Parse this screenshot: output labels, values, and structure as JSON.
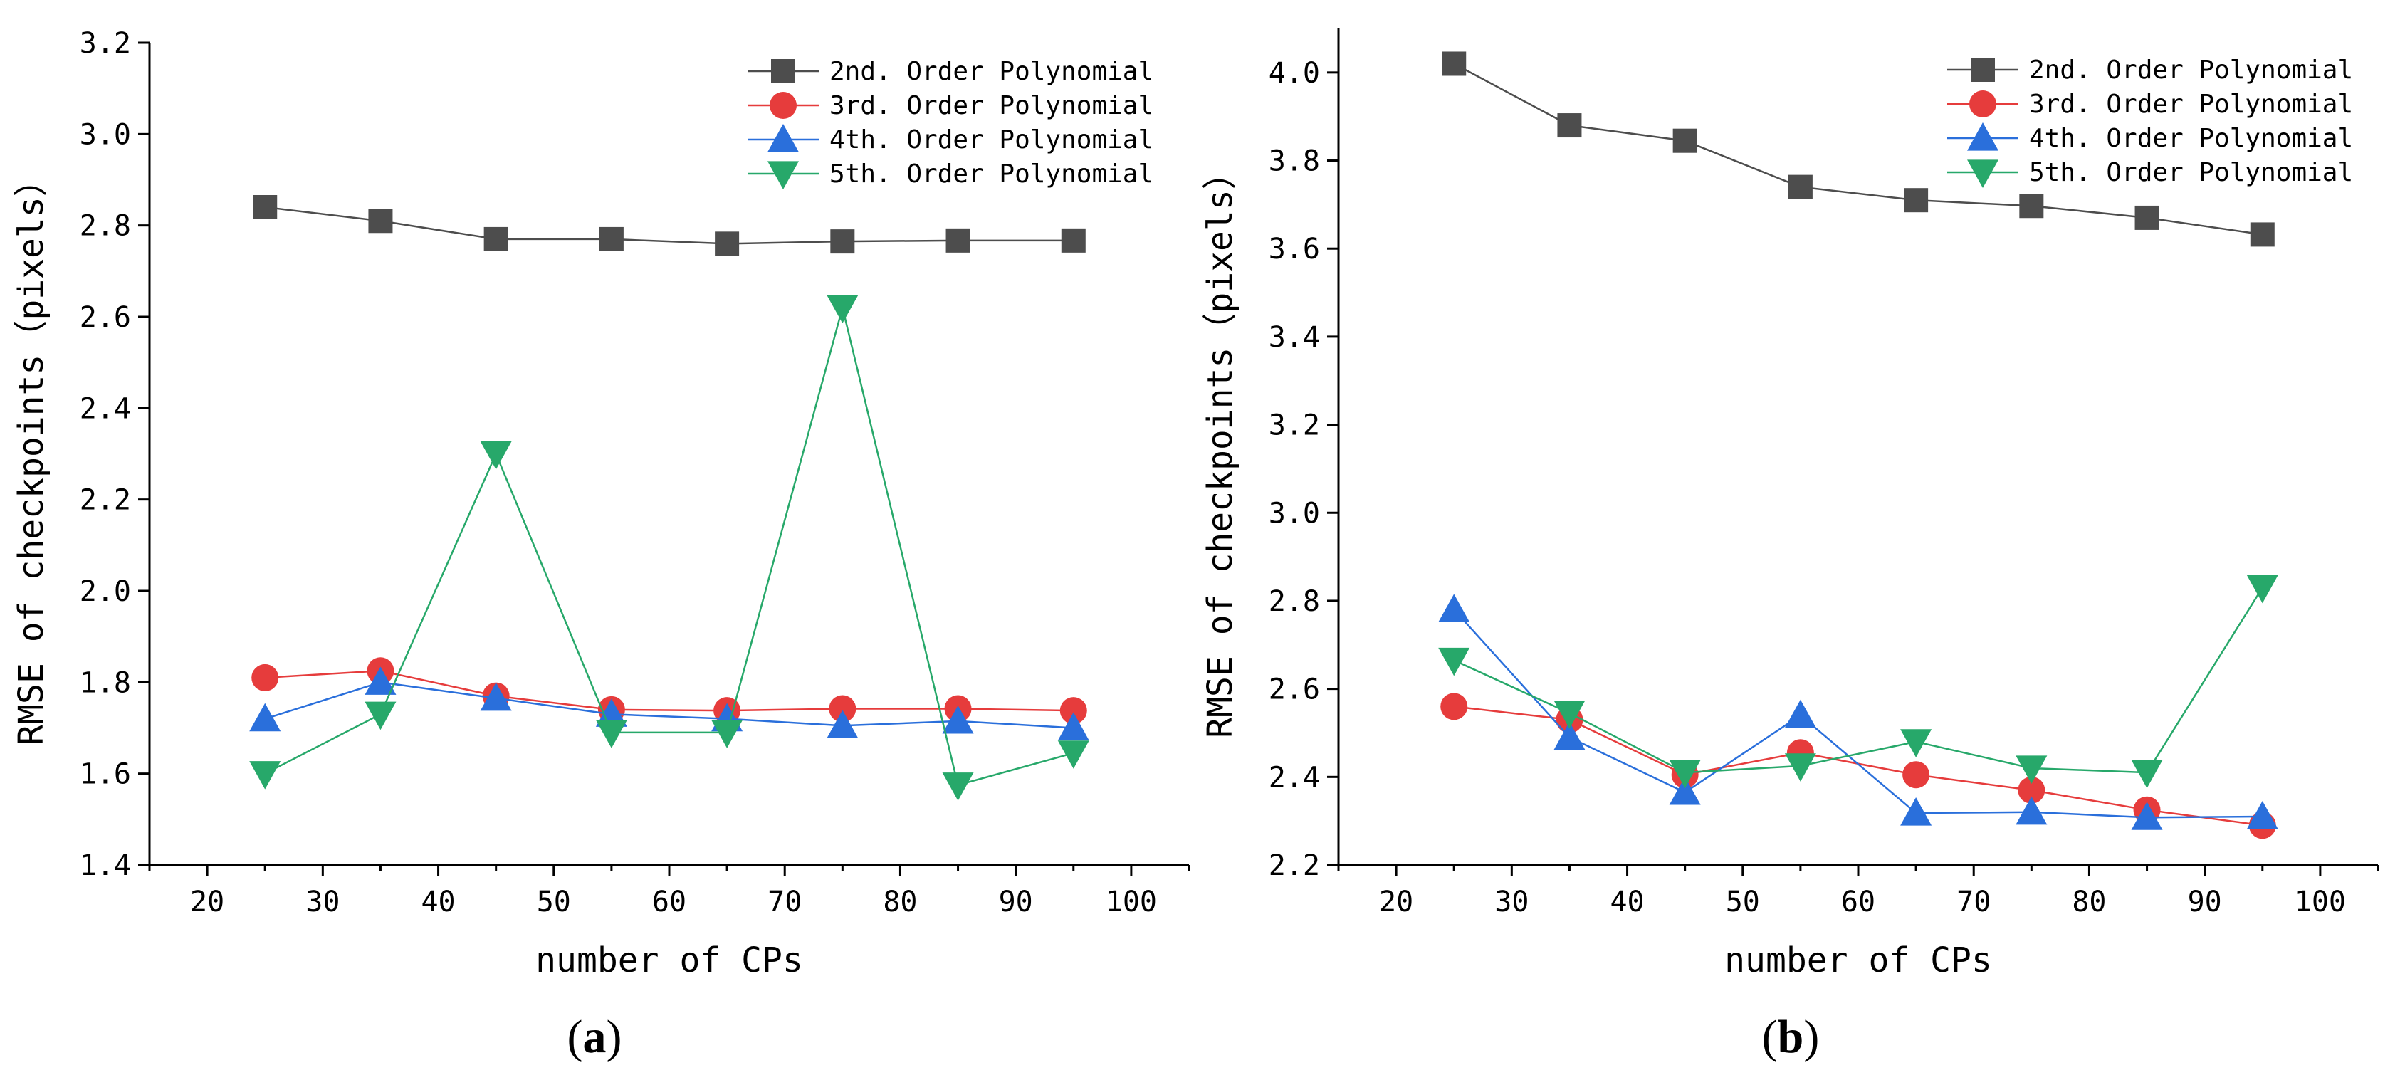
{
  "chart_data": [
    {
      "type": "line",
      "panel_label": "a",
      "title": "",
      "xlabel": "number of CPs",
      "ylabel": "RMSE of checkpoints（pixels）",
      "xlim": [
        15,
        105
      ],
      "ylim": [
        1.4,
        3.2
      ],
      "xticks": [
        20,
        30,
        40,
        50,
        60,
        70,
        80,
        90,
        100
      ],
      "yticks": [
        "1.4",
        "1.6",
        "1.8",
        "2.0",
        "2.2",
        "2.4",
        "2.6",
        "2.8",
        "3.0",
        "3.2"
      ],
      "x": [
        25,
        35,
        45,
        55,
        65,
        75,
        85,
        95
      ],
      "legend_position": "top-right",
      "grid": false,
      "series": [
        {
          "name": "2nd. Order Polynomial",
          "marker": "square",
          "color": "#4d4d4d",
          "values": [
            2.84,
            2.81,
            2.77,
            2.77,
            2.76,
            2.765,
            2.767,
            2.767
          ]
        },
        {
          "name": "3rd. Order Polynomial",
          "marker": "circle",
          "color": "#e63c3c",
          "values": [
            1.81,
            1.825,
            1.77,
            1.74,
            1.738,
            1.742,
            1.742,
            1.738
          ]
        },
        {
          "name": "4th. Order Polynomial",
          "marker": "triangle-up",
          "color": "#2a6fdb",
          "values": [
            1.72,
            1.8,
            1.765,
            1.73,
            1.72,
            1.705,
            1.715,
            1.7
          ]
        },
        {
          "name": "5th. Order Polynomial",
          "marker": "triangle-down",
          "color": "#27a86a",
          "values": [
            1.6,
            1.73,
            2.3,
            1.69,
            1.69,
            2.62,
            1.575,
            1.645
          ]
        }
      ]
    },
    {
      "type": "line",
      "panel_label": "b",
      "title": "",
      "xlabel": "number of CPs",
      "ylabel": "RMSE of checkpoints（pixels）",
      "xlim": [
        15,
        105
      ],
      "ylim": [
        2.2,
        4.1
      ],
      "xticks": [
        20,
        30,
        40,
        50,
        60,
        70,
        80,
        90,
        100
      ],
      "yticks": [
        "2.2",
        "2.4",
        "2.6",
        "2.8",
        "3.0",
        "3.2",
        "3.4",
        "3.6",
        "3.8",
        "4.0"
      ],
      "x": [
        25,
        35,
        45,
        55,
        65,
        75,
        85,
        95
      ],
      "legend_position": "top-right",
      "grid": false,
      "series": [
        {
          "name": "2nd. Order Polynomial",
          "marker": "square",
          "color": "#4d4d4d",
          "values": [
            4.02,
            3.88,
            3.845,
            3.74,
            3.71,
            3.697,
            3.67,
            3.632
          ]
        },
        {
          "name": "3rd. Order Polynomial",
          "marker": "circle",
          "color": "#e63c3c",
          "values": [
            2.56,
            2.53,
            2.405,
            2.455,
            2.405,
            2.37,
            2.325,
            2.29
          ]
        },
        {
          "name": "4th. Order Polynomial",
          "marker": "triangle-up",
          "color": "#2a6fdb",
          "values": [
            2.78,
            2.49,
            2.365,
            2.54,
            2.318,
            2.32,
            2.308,
            2.31
          ]
        },
        {
          "name": "5th. Order Polynomial",
          "marker": "triangle-down",
          "color": "#27a86a",
          "values": [
            2.665,
            2.545,
            2.41,
            2.425,
            2.48,
            2.42,
            2.41,
            2.83
          ]
        }
      ]
    }
  ]
}
